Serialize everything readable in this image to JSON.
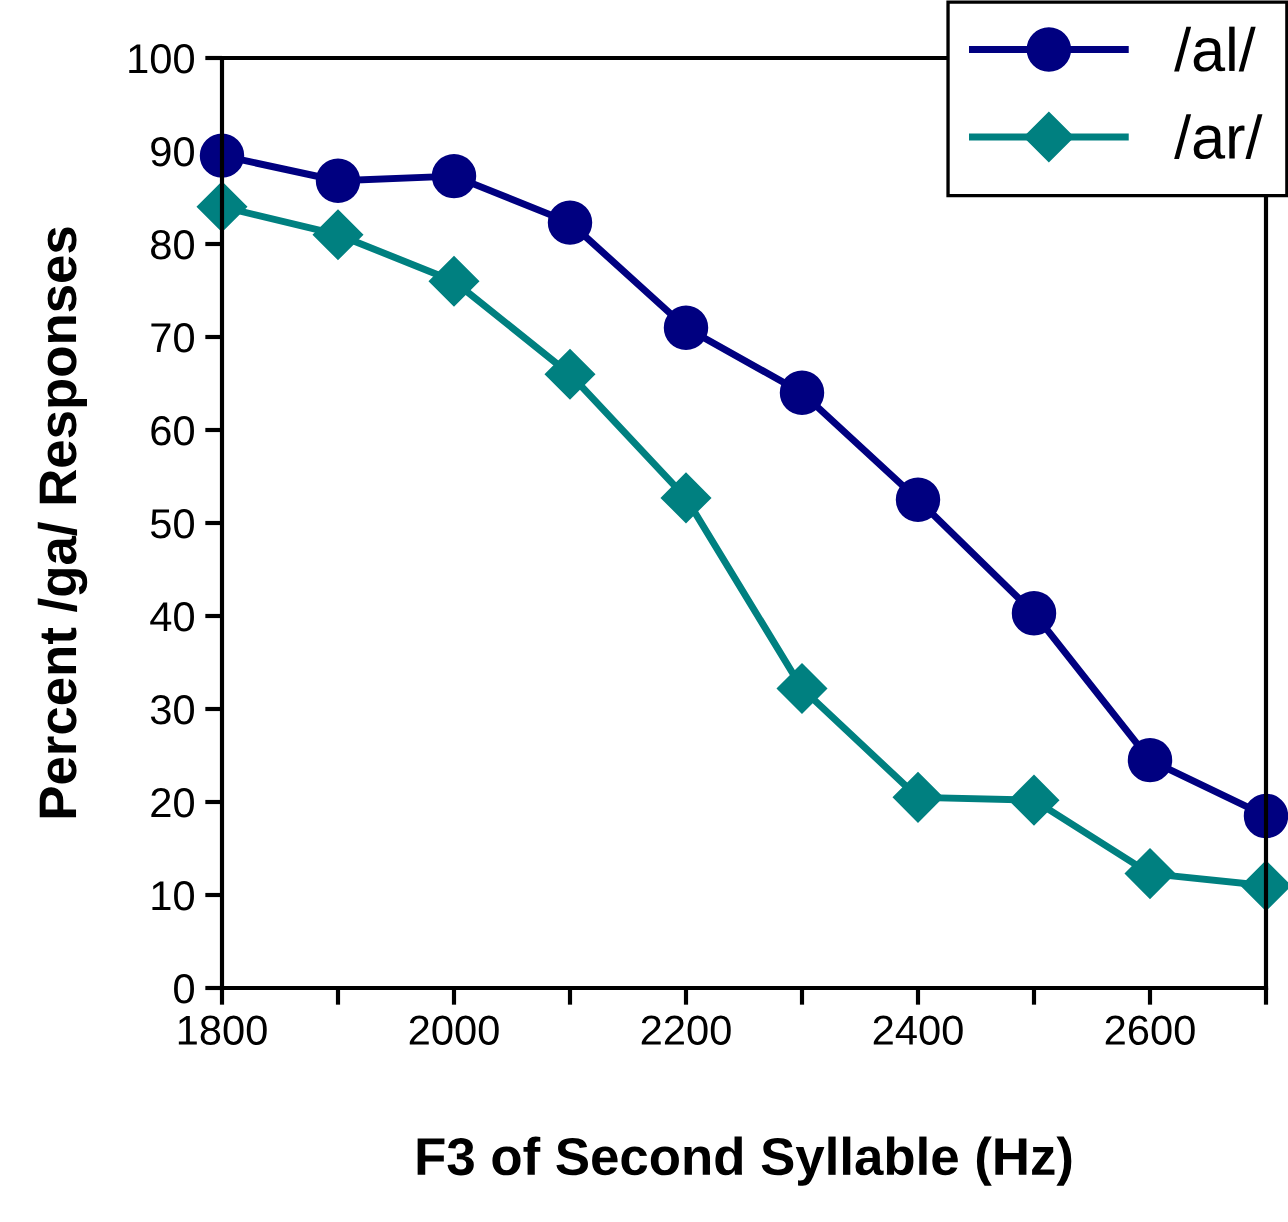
{
  "chart_data": {
    "type": "line",
    "xlabel": "F3 of Second Syllable (Hz)",
    "ylabel": "Percent /ga/ Responses",
    "x": [
      1800,
      1900,
      2000,
      2100,
      2200,
      2300,
      2400,
      2500,
      2600,
      2700
    ],
    "series": [
      {
        "name": "/al/",
        "color": "#000080",
        "marker": "circle",
        "values": [
          89.5,
          86.8,
          87.3,
          82.3,
          71,
          64,
          52.5,
          40.3,
          24.5,
          18.5
        ]
      },
      {
        "name": "/ar/",
        "color": "#008080",
        "marker": "diamond",
        "values": [
          84,
          81,
          76,
          66,
          52.7,
          32.2,
          20.5,
          20.2,
          12.3,
          11
        ]
      }
    ],
    "xlim": [
      1800,
      2700
    ],
    "xticks": [
      1800,
      {
        "value": 1900,
        "label": null
      },
      2000,
      {
        "value": 2100,
        "label": null
      },
      2200,
      {
        "value": 2300,
        "label": null
      },
      2400,
      {
        "value": 2500,
        "label": null
      },
      2600,
      {
        "value": 2700,
        "label": null
      }
    ],
    "ylim": [
      0,
      100
    ],
    "yticks": [
      0,
      10,
      20,
      30,
      40,
      50,
      60,
      70,
      80,
      90,
      100
    ],
    "grid": false,
    "legend": "top right",
    "line_style": "solid"
  }
}
